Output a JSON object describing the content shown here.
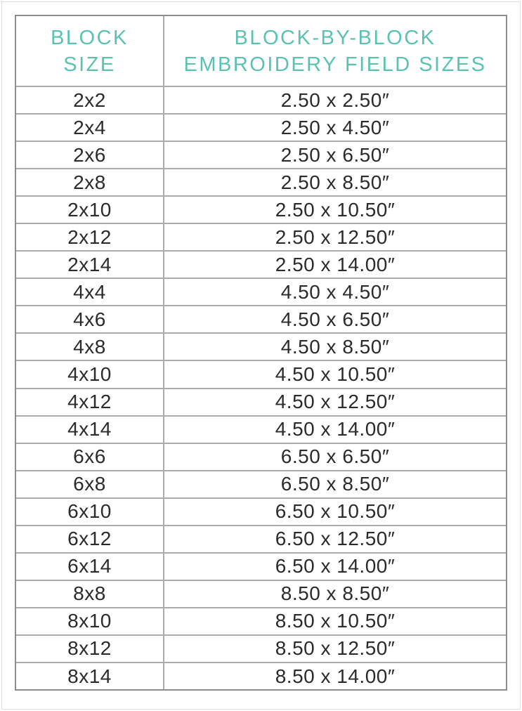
{
  "page": {
    "background": "#ffffff",
    "frame_color": "#e0e0e0"
  },
  "colors": {
    "accent_teal": "#5bc2b2",
    "body_text": "#2b2b2b",
    "outer_border": "#8d8d8d",
    "grid_line": "#ababab"
  },
  "table": {
    "header": {
      "block_size_line1": "BLOCK",
      "block_size_line2": "SIZE",
      "field_sizes_line1": "BLOCK-BY-BLOCK",
      "field_sizes_line2": "EMBROIDERY FIELD SIZES"
    }
  },
  "chart_data": {
    "type": "table",
    "title": "Block-by-Block Embroidery Field Sizes",
    "columns": [
      "BLOCK SIZE",
      "BLOCK-BY-BLOCK EMBROIDERY FIELD SIZES"
    ],
    "rows": [
      [
        "2x2",
        "2.50 x 2.50″"
      ],
      [
        "2x4",
        "2.50 x 4.50″"
      ],
      [
        "2x6",
        "2.50 x 6.50″"
      ],
      [
        "2x8",
        "2.50 x 8.50″"
      ],
      [
        "2x10",
        "2.50 x 10.50″"
      ],
      [
        "2x12",
        "2.50 x 12.50″"
      ],
      [
        "2x14",
        "2.50 x 14.00″"
      ],
      [
        "4x4",
        "4.50 x 4.50″"
      ],
      [
        "4x6",
        "4.50 x 6.50″"
      ],
      [
        "4x8",
        "4.50 x 8.50″"
      ],
      [
        "4x10",
        "4.50 x 10.50″"
      ],
      [
        "4x12",
        "4.50 x 12.50″"
      ],
      [
        "4x14",
        "4.50 x 14.00″"
      ],
      [
        "6x6",
        "6.50 x 6.50″"
      ],
      [
        "6x8",
        "6.50 x 8.50″"
      ],
      [
        "6x10",
        "6.50 x 10.50″"
      ],
      [
        "6x12",
        "6.50 x 12.50″"
      ],
      [
        "6x14",
        "6.50 x 14.00″"
      ],
      [
        "8x8",
        "8.50 x 8.50″"
      ],
      [
        "8x10",
        "8.50 x 10.50″"
      ],
      [
        "8x12",
        "8.50 x 12.50″"
      ],
      [
        "8x14",
        "8.50 x 14.00″"
      ]
    ]
  }
}
